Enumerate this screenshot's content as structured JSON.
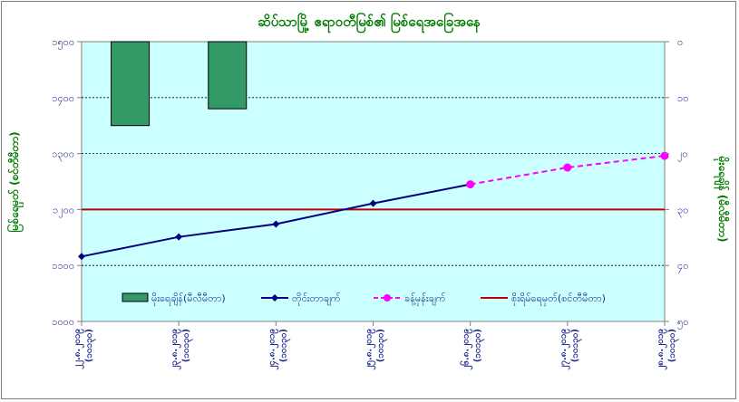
{
  "chart_data": {
    "type": "bar+line",
    "title": "ဆိပ်သာမြို့ ဧရာဝတီမြစ်၏ မြစ်ရေအခြေအနေ",
    "categories": [
      "၂၂.၈.၂၀၁၉\n(၁၀၁၃၀)",
      "၂၃.၈.၂၀၁၉\n(၁၀၁၃၀)",
      "၂၄.၈.၂၀၁၉\n(၁၀၁၃၀)",
      "၂၅.၈.၂၀၁၉\n(၁၀၁၃၀)",
      "၂၆.၈.၂၀၁၉\n(၁၀၁၃၀)",
      "၂၇.၈.၂၀၁၉\n(၁၀၁၃၀)",
      "၂၈.၈.၂၀၁၉\n(၁၀၁၃၀)"
    ],
    "left_axis": {
      "label": "မြစ်ရေမှတ် (စင်တီမီတာ)",
      "min": 1000,
      "max": 1500,
      "step": 100,
      "tick_labels": [
        "၁၀၀၀",
        "၁၁၀၀",
        "၁၂၀၀",
        "၁၃၀၀",
        "၁၄၀၀",
        "၁၅၀၀"
      ]
    },
    "right_axis": {
      "label": "မိုးရေချိန် (မီလီမီတာ)",
      "min": 0,
      "max": 50,
      "step": 10,
      "reversed": true,
      "tick_labels": [
        "၀",
        "၁၀",
        "၂၀",
        "၃၀",
        "၄၀",
        "၅၀"
      ]
    },
    "grid": true,
    "series": [
      {
        "name": "မိုးရေချိန်(မီလီမီတာ)",
        "type": "bar",
        "axis": "right",
        "color": "#339966",
        "values": [
          0,
          15,
          12,
          0,
          0,
          0,
          0
        ]
      },
      {
        "name": "တိုင်းတာချက်",
        "type": "line",
        "axis": "left",
        "color": "#000080",
        "marker": "diamond",
        "values": [
          1116,
          1151,
          1174,
          1211,
          1245,
          null,
          null
        ]
      },
      {
        "name": "ခန့်မှန်းချက်",
        "type": "line-dashed",
        "axis": "left",
        "color": "#ff00ff",
        "marker": "circle",
        "values": [
          null,
          null,
          null,
          null,
          1245,
          1275,
          1296
        ]
      },
      {
        "name": "စိုးရိမ်ရေမှတ်(စင်တီမီတာ)",
        "type": "hline",
        "axis": "left",
        "color": "#c00000",
        "value": 1200
      }
    ],
    "legend_position": "bottom-inside"
  }
}
